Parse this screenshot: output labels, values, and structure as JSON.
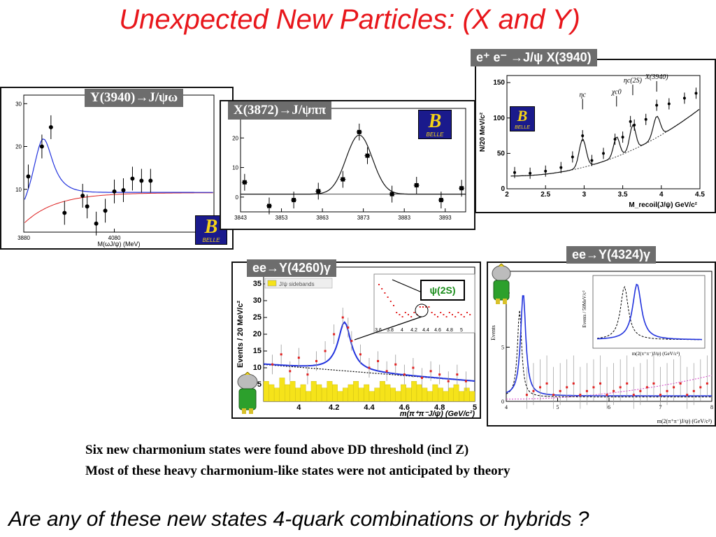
{
  "slide": {
    "title": "Unexpected New Particles: (X and Y)",
    "note_line1": "Six new charmonium states were found above DD threshold (incl Z)",
    "note_line2": "Most of these heavy charmonium-like states were not anticipated by theory",
    "question": "Are any of these new states 4-quark combinations or hybrids ?",
    "belle_logo_letter": "B",
    "belle_logo_text": "BELLE",
    "psi2s_label": "ψ(2S)"
  },
  "panels": {
    "y3940": {
      "label": "Y(3940)→J/ψω"
    },
    "x3872": {
      "label": "X(3872)→J/ψππ"
    },
    "x3940": {
      "label": "e⁺ e⁻ →J/ψ X(3940)"
    },
    "y4260": {
      "label": "ee→Y(4260)γ"
    },
    "y4324": {
      "label": "ee→Y(4324)γ"
    }
  },
  "chart_data": [
    {
      "type": "scatter",
      "name_ref": "y3940",
      "title": "Y(3940)→J/ψω",
      "xlabel": "M(ωJ/ψ) (MeV)",
      "ylabel": "",
      "xlim": [
        3880,
        4300
      ],
      "ylim": [
        0,
        32
      ],
      "x_ticks": [
        "3880",
        "4080",
        "4280"
      ],
      "y_ticks": [
        "10",
        "20",
        "30"
      ],
      "x": [
        3890,
        3920,
        3940,
        3970,
        4010,
        4020,
        4040,
        4060,
        4080,
        4100,
        4120,
        4140,
        4160
      ],
      "y": [
        13,
        20,
        24.5,
        4.5,
        8.5,
        6,
        2,
        5,
        9.5,
        9.8,
        12.5,
        12,
        12
      ],
      "fit_lines": [
        "signal+background",
        "background"
      ],
      "colors": {
        "fit": "#2233dd",
        "background": "#dd2222"
      }
    },
    {
      "type": "scatter",
      "name_ref": "x3872",
      "title": "X(3872)→J/ψππ",
      "xlabel": "",
      "ylabel": "",
      "xlim": [
        3843,
        3898
      ],
      "ylim": [
        -5,
        30
      ],
      "x_ticks": [
        "3843",
        "3853",
        "3863",
        "3873",
        "3883",
        "3893"
      ],
      "y_ticks": [
        "0",
        "10",
        "20"
      ],
      "x": [
        3844,
        3850,
        3856,
        3862,
        3868,
        3872,
        3874,
        3880,
        3886,
        3892,
        3897
      ],
      "y": [
        5,
        -3,
        -1,
        2,
        6,
        22,
        14,
        1,
        4,
        -1,
        3
      ],
      "fit_lines": [
        "gaussian+background"
      ],
      "colors": {
        "fit": "#111111"
      }
    },
    {
      "type": "scatter",
      "name_ref": "x3940",
      "title": "e⁺ e⁻ →J/ψ X(3940)",
      "xlabel": "M_recoil(J/ψ)  GeV/c²",
      "ylabel": "N/20 MeV/c²",
      "xlim": [
        2.0,
        4.5
      ],
      "ylim": [
        0,
        160
      ],
      "x_ticks": [
        "2",
        "2.5",
        "3",
        "3.5",
        "4",
        "4.5"
      ],
      "y_ticks": [
        "0",
        "50",
        "100",
        "150"
      ],
      "annotations": [
        "ηc",
        "χc0",
        "ηc(2S)",
        "X(3940)"
      ],
      "x": [
        2.1,
        2.3,
        2.5,
        2.7,
        2.85,
        2.98,
        3.1,
        3.25,
        3.4,
        3.5,
        3.6,
        3.65,
        3.8,
        3.94,
        4.1,
        4.3,
        4.45
      ],
      "y": [
        23,
        22,
        25,
        30,
        45,
        75,
        40,
        50,
        70,
        73,
        95,
        90,
        98,
        118,
        120,
        128,
        135
      ],
      "colors": {
        "fit": "#111111"
      }
    },
    {
      "type": "bar",
      "name_ref": "y4260",
      "title": "ee→Y(4260)γ",
      "xlabel": "m(π⁺π⁻J/ψ) (GeV/c²)",
      "ylabel": "Events / 20 MeV/c²",
      "xlim": [
        3.8,
        5.0
      ],
      "ylim": [
        0,
        40
      ],
      "x_ticks": [
        "4",
        "4.2",
        "4.4",
        "4.6",
        "4.8",
        "5"
      ],
      "y_ticks": [
        "5",
        "10",
        "15",
        "20",
        "25",
        "30",
        "35"
      ],
      "inset_legend": "J/ψ sidebands",
      "peak_x": 4.26,
      "peak_y": 25,
      "colors": {
        "fit": "#2233dd",
        "sideband": "#f5e31a",
        "points": "#e22222"
      }
    },
    {
      "type": "line",
      "name_ref": "y4324",
      "title": "ee→Y(4324)γ",
      "xlabel": "m(2(π⁺π⁻)J/ψ)  (GeV/c²)",
      "ylabel": "Events",
      "xlim": [
        4,
        8
      ],
      "ylim": [
        0,
        12
      ],
      "x_ticks": [
        "4",
        "5",
        "6",
        "7",
        "8"
      ],
      "y_ticks": [
        "0",
        "5",
        "10"
      ],
      "inset_ylabel": "Events / 50MeV/c²",
      "inset_xlabel": "m(2(π⁺π⁻)J/ψ) (GeV/c²)",
      "peak_x": 4.33,
      "colors": {
        "fit": "#2233dd"
      }
    }
  ]
}
